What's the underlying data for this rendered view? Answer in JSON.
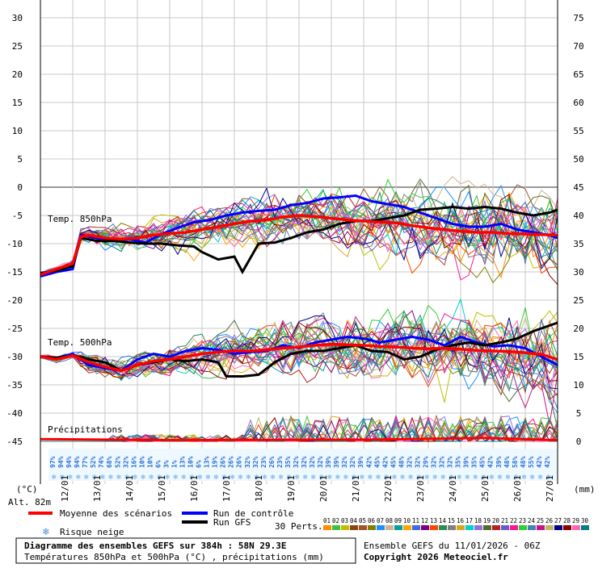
{
  "chart_data": {
    "type": "line",
    "title_line1": "Diagramme des ensembles GEFS sur 384h : 58N 29.3E",
    "title_line2": "Températures 850hPa et 500hPa (°C) , précipitations (mm)",
    "ensemble_info": "Ensemble GEFS du 11/01/2026 - 06Z",
    "copyright": "Copyright 2026 Meteociel.fr",
    "left_unit": "(°C)",
    "right_unit": "(mm)",
    "altitude": "Alt. 82m",
    "left_axis": {
      "range": [
        -45,
        30
      ],
      "ticks": [
        30,
        25,
        20,
        15,
        10,
        5,
        0,
        -5,
        -10,
        -15,
        -20,
        -25,
        -30,
        -35,
        -40,
        -45
      ]
    },
    "right_axis": {
      "range": [
        0,
        75
      ],
      "ticks": [
        75,
        70,
        65,
        60,
        55,
        50,
        45,
        40,
        35,
        30,
        25,
        20,
        15,
        10,
        5,
        0
      ]
    },
    "x_dates": [
      "12/01",
      "13/01",
      "14/01",
      "15/01",
      "16/01",
      "17/01",
      "18/01",
      "19/01",
      "20/01",
      "21/01",
      "22/01",
      "23/01",
      "24/01",
      "25/01",
      "26/01",
      "27/01"
    ],
    "grid": true,
    "labels": {
      "t850": "Temp. 850hPa",
      "t500": "Temp. 500hPa",
      "precip": "Précipitations"
    },
    "legend": {
      "mean": "Moyenne des scénarios",
      "control": "Run de contrôle",
      "gfs": "Run GFS",
      "snow": "Risque neige",
      "perts": "30 Perts.",
      "colors": {
        "mean": "#ff0000",
        "control": "#0000ff",
        "gfs": "#000000"
      }
    },
    "pert_numbers": [
      "01",
      "02",
      "03",
      "04",
      "05",
      "06",
      "07",
      "08",
      "09",
      "10",
      "11",
      "12",
      "13",
      "14",
      "15",
      "16",
      "17",
      "18",
      "19",
      "20",
      "21",
      "22",
      "23",
      "24",
      "25",
      "26",
      "27",
      "28",
      "29",
      "30"
    ],
    "pert_colors": [
      "#ff8c00",
      "#40c040",
      "#c0c000",
      "#8b4513",
      "#a0522d",
      "#808000",
      "#1e90ff",
      "#d2b48c",
      "#00a0a0",
      "#ffa500",
      "#4169e1",
      "#800080",
      "#ff4500",
      "#2e8b57",
      "#808080",
      "#daa520",
      "#00ced1",
      "#9370db",
      "#556b2f",
      "#b22222",
      "#6a5acd",
      "#ff1493",
      "#32cd32",
      "#4682b4",
      "#c71585",
      "#bdb76b",
      "#00008b",
      "#8b0000",
      "#ff69b4",
      "#008080"
    ],
    "snow_risk": [
      "97%",
      "94%",
      "94%",
      "94%",
      "77%",
      "52%",
      "74%",
      "68%",
      "52%",
      "32%",
      "16%",
      "10%",
      "10%",
      "6%",
      "3%",
      "1%",
      "13%",
      "10%",
      "6%",
      "13%",
      "19%",
      "26%",
      "26%",
      "26%",
      "32%",
      "32%",
      "23%",
      "26%",
      "23%",
      "35%",
      "32%",
      "32%",
      "32%",
      "32%",
      "39%",
      "39%",
      "32%",
      "32%",
      "39%",
      "42%",
      "45%",
      "42%",
      "45%",
      "48%",
      "32%",
      "32%",
      "29%",
      "32%",
      "32%",
      "32%",
      "35%",
      "39%",
      "35%",
      "45%",
      "42%",
      "39%",
      "48%",
      "58%",
      "48%",
      "55%",
      "42%",
      "42%"
    ],
    "series": [
      {
        "name": "Moyenne des scénarios",
        "role": "mean",
        "t850": [
          [
            0,
            -15.5
          ],
          [
            12,
            -14.5
          ],
          [
            24,
            -13.5
          ],
          [
            30,
            -8.8
          ],
          [
            36,
            -8.5
          ],
          [
            48,
            -9
          ],
          [
            60,
            -9.2
          ],
          [
            72,
            -9
          ],
          [
            84,
            -8.5
          ],
          [
            96,
            -8.2
          ],
          [
            108,
            -8
          ],
          [
            120,
            -7.5
          ],
          [
            132,
            -7
          ],
          [
            144,
            -6.5
          ],
          [
            156,
            -6
          ],
          [
            168,
            -5.8
          ],
          [
            180,
            -5.3
          ],
          [
            192,
            -5
          ],
          [
            204,
            -5.2
          ],
          [
            216,
            -5.5
          ],
          [
            228,
            -5.8
          ],
          [
            240,
            -6
          ],
          [
            252,
            -6.2
          ],
          [
            264,
            -6.3
          ],
          [
            276,
            -6.8
          ],
          [
            288,
            -7.2
          ],
          [
            300,
            -7.5
          ],
          [
            312,
            -7.8
          ],
          [
            324,
            -8
          ],
          [
            336,
            -8
          ],
          [
            348,
            -8.2
          ],
          [
            360,
            -8.3
          ],
          [
            372,
            -8.4
          ],
          [
            384,
            -8.5
          ]
        ],
        "t500": [
          [
            0,
            -30
          ],
          [
            12,
            -30.5
          ],
          [
            24,
            -29.8
          ],
          [
            36,
            -31
          ],
          [
            48,
            -31.8
          ],
          [
            60,
            -32.5
          ],
          [
            72,
            -31.5
          ],
          [
            84,
            -30.8
          ],
          [
            96,
            -30.5
          ],
          [
            108,
            -30
          ],
          [
            120,
            -29.5
          ],
          [
            132,
            -29.2
          ],
          [
            144,
            -29
          ],
          [
            156,
            -29
          ],
          [
            168,
            -28.8
          ],
          [
            180,
            -28.5
          ],
          [
            192,
            -28.3
          ],
          [
            204,
            -28
          ],
          [
            216,
            -27.8
          ],
          [
            228,
            -27.9
          ],
          [
            240,
            -28
          ],
          [
            252,
            -28.2
          ],
          [
            264,
            -28.3
          ],
          [
            276,
            -28.5
          ],
          [
            288,
            -28.6
          ],
          [
            300,
            -28.5
          ],
          [
            312,
            -28.7
          ],
          [
            324,
            -28.9
          ],
          [
            336,
            -29
          ],
          [
            348,
            -29.1
          ],
          [
            360,
            -29.3
          ],
          [
            372,
            -29.6
          ],
          [
            384,
            -30.5
          ]
        ]
      },
      {
        "name": "Run de contrôle",
        "role": "control",
        "t850": [
          [
            0,
            -15.8
          ],
          [
            12,
            -15
          ],
          [
            24,
            -14.5
          ],
          [
            30,
            -8.5
          ],
          [
            42,
            -9
          ],
          [
            54,
            -9.5
          ],
          [
            66,
            -9.2
          ],
          [
            78,
            -9.8
          ],
          [
            90,
            -8.3
          ],
          [
            102,
            -7.2
          ],
          [
            114,
            -6.2
          ],
          [
            126,
            -5.8
          ],
          [
            138,
            -5
          ],
          [
            150,
            -4.5
          ],
          [
            162,
            -4.2
          ],
          [
            174,
            -4
          ],
          [
            186,
            -3.2
          ],
          [
            198,
            -2.8
          ],
          [
            210,
            -2
          ],
          [
            222,
            -1.8
          ],
          [
            234,
            -1.5
          ],
          [
            246,
            -2.5
          ],
          [
            258,
            -3
          ],
          [
            270,
            -3.5
          ],
          [
            282,
            -4.5
          ],
          [
            294,
            -5.5
          ],
          [
            306,
            -6.5
          ],
          [
            318,
            -7
          ],
          [
            330,
            -7
          ],
          [
            342,
            -6.5
          ],
          [
            354,
            -7.5
          ],
          [
            366,
            -8
          ],
          [
            378,
            -8.5
          ],
          [
            384,
            -9
          ]
        ],
        "t500": [
          [
            0,
            -30
          ],
          [
            12,
            -30.2
          ],
          [
            24,
            -29.5
          ],
          [
            36,
            -31.5
          ],
          [
            48,
            -32
          ],
          [
            60,
            -32.5
          ],
          [
            72,
            -30.5
          ],
          [
            84,
            -29.5
          ],
          [
            96,
            -30
          ],
          [
            108,
            -29
          ],
          [
            120,
            -28.5
          ],
          [
            132,
            -28.8
          ],
          [
            144,
            -29.5
          ],
          [
            156,
            -29.2
          ],
          [
            168,
            -29
          ],
          [
            180,
            -28
          ],
          [
            192,
            -28.5
          ],
          [
            204,
            -27.5
          ],
          [
            216,
            -27
          ],
          [
            228,
            -26.5
          ],
          [
            240,
            -26.8
          ],
          [
            252,
            -27.5
          ],
          [
            264,
            -27
          ],
          [
            276,
            -26.5
          ],
          [
            288,
            -27
          ],
          [
            300,
            -28
          ],
          [
            312,
            -26.5
          ],
          [
            324,
            -27.5
          ],
          [
            336,
            -28.2
          ],
          [
            348,
            -28
          ],
          [
            360,
            -28.5
          ],
          [
            372,
            -30
          ],
          [
            384,
            -31.5
          ]
        ]
      },
      {
        "name": "Run GFS",
        "role": "gfs",
        "t850": [
          [
            0,
            -15.2
          ],
          [
            12,
            -14.8
          ],
          [
            24,
            -14
          ],
          [
            30,
            -9
          ],
          [
            42,
            -9.5
          ],
          [
            54,
            -9.5
          ],
          [
            66,
            -9.8
          ],
          [
            78,
            -10
          ],
          [
            90,
            -10
          ],
          [
            102,
            -10.3
          ],
          [
            114,
            -10.5
          ],
          [
            120,
            -11.5
          ],
          [
            132,
            -12.8
          ],
          [
            144,
            -12.3
          ],
          [
            150,
            -15
          ],
          [
            156,
            -12.5
          ],
          [
            162,
            -10
          ],
          [
            174,
            -9.8
          ],
          [
            186,
            -9
          ],
          [
            198,
            -8
          ],
          [
            210,
            -7.5
          ],
          [
            222,
            -6.5
          ],
          [
            234,
            -6
          ],
          [
            246,
            -6
          ],
          [
            258,
            -5.5
          ],
          [
            270,
            -5
          ],
          [
            282,
            -4
          ],
          [
            294,
            -3.8
          ],
          [
            306,
            -3.5
          ],
          [
            318,
            -3.8
          ],
          [
            330,
            -3.5
          ],
          [
            342,
            -3.8
          ],
          [
            354,
            -4.5
          ],
          [
            366,
            -5
          ],
          [
            378,
            -4.5
          ],
          [
            384,
            -4
          ]
        ],
        "t500": [
          [
            0,
            -30
          ],
          [
            12,
            -30.2
          ],
          [
            24,
            -29.8
          ],
          [
            36,
            -30.5
          ],
          [
            48,
            -31
          ],
          [
            60,
            -32.5
          ],
          [
            72,
            -31.5
          ],
          [
            84,
            -31
          ],
          [
            96,
            -30.5
          ],
          [
            108,
            -30.8
          ],
          [
            120,
            -30.5
          ],
          [
            132,
            -31
          ],
          [
            138,
            -33.5
          ],
          [
            150,
            -33.5
          ],
          [
            162,
            -33.2
          ],
          [
            174,
            -31
          ],
          [
            186,
            -29.5
          ],
          [
            198,
            -29
          ],
          [
            210,
            -29
          ],
          [
            222,
            -28.5
          ],
          [
            234,
            -28
          ],
          [
            246,
            -29
          ],
          [
            258,
            -29.2
          ],
          [
            270,
            -30.5
          ],
          [
            282,
            -30
          ],
          [
            294,
            -28.8
          ],
          [
            306,
            -28
          ],
          [
            318,
            -27.5
          ],
          [
            330,
            -28
          ],
          [
            342,
            -27.5
          ],
          [
            354,
            -26.8
          ],
          [
            366,
            -25.5
          ],
          [
            378,
            -24.5
          ],
          [
            384,
            -24
          ]
        ]
      }
    ]
  }
}
